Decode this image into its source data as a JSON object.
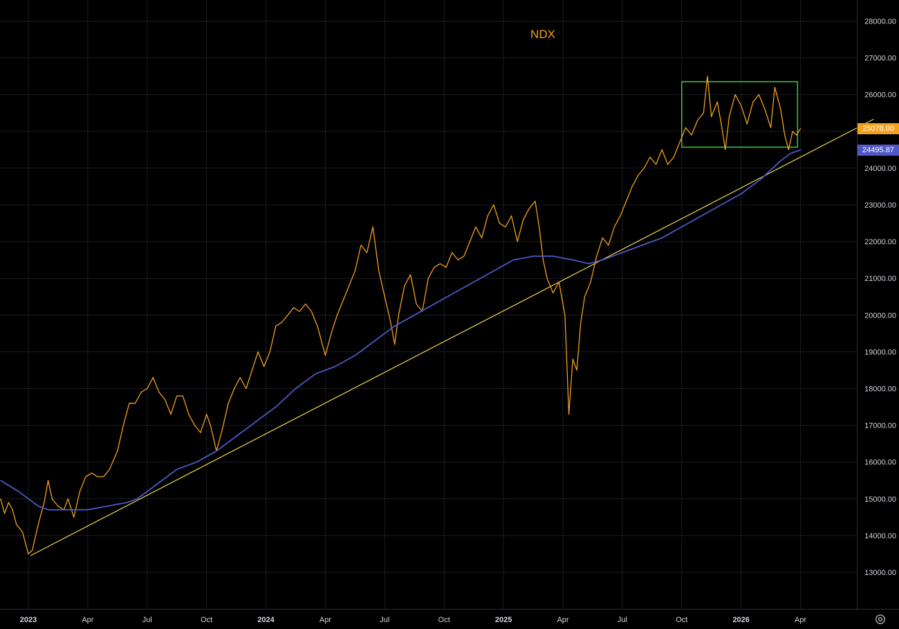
{
  "chart_data": {
    "type": "line",
    "title": "NDX",
    "xlabel": "",
    "ylabel": "",
    "ylim": [
      12000,
      28500
    ],
    "grid": true,
    "y_ticks": [
      "28000.00",
      "27000.00",
      "26000.00",
      "25000.00",
      "24000.00",
      "23000.00",
      "22000.00",
      "21000.00",
      "20000.00",
      "19000.00",
      "18000.00",
      "17000.00",
      "16000.00",
      "15000.00",
      "14000.00",
      "13000.00"
    ],
    "x_ticks": [
      {
        "label": "2023",
        "bold": true,
        "t": 0
      },
      {
        "label": "Apr",
        "bold": false,
        "t": 3
      },
      {
        "label": "Jul",
        "bold": false,
        "t": 6
      },
      {
        "label": "Oct",
        "bold": false,
        "t": 9
      },
      {
        "label": "2024",
        "bold": true,
        "t": 12
      },
      {
        "label": "Apr",
        "bold": false,
        "t": 15
      },
      {
        "label": "Jul",
        "bold": false,
        "t": 18
      },
      {
        "label": "Oct",
        "bold": false,
        "t": 21
      },
      {
        "label": "2025",
        "bold": true,
        "t": 24
      },
      {
        "label": "Apr",
        "bold": false,
        "t": 27
      },
      {
        "label": "Jul",
        "bold": false,
        "t": 30
      },
      {
        "label": "Oct",
        "bold": false,
        "t": 33
      },
      {
        "label": "2026",
        "bold": true,
        "t": 36
      },
      {
        "label": "Apr",
        "bold": false,
        "t": 39
      }
    ],
    "series": [
      {
        "name": "",
        "color": "#f5a11c",
        "points": [
          [
            -1.4,
            15000
          ],
          [
            -1.2,
            14600
          ],
          [
            -1.0,
            14900
          ],
          [
            -0.8,
            14700
          ],
          [
            -0.6,
            14300
          ],
          [
            -0.3,
            14100
          ],
          [
            0.0,
            13500
          ],
          [
            0.2,
            13600
          ],
          [
            0.5,
            14300
          ],
          [
            0.8,
            14900
          ],
          [
            1.0,
            15500
          ],
          [
            1.2,
            15000
          ],
          [
            1.5,
            14800
          ],
          [
            1.8,
            14700
          ],
          [
            2.0,
            15000
          ],
          [
            2.3,
            14500
          ],
          [
            2.6,
            15200
          ],
          [
            2.9,
            15600
          ],
          [
            3.2,
            15700
          ],
          [
            3.5,
            15600
          ],
          [
            3.8,
            15600
          ],
          [
            4.1,
            15800
          ],
          [
            4.5,
            16300
          ],
          [
            4.8,
            17000
          ],
          [
            5.1,
            17600
          ],
          [
            5.4,
            17600
          ],
          [
            5.7,
            17900
          ],
          [
            6.0,
            18000
          ],
          [
            6.3,
            18300
          ],
          [
            6.6,
            17900
          ],
          [
            6.9,
            17700
          ],
          [
            7.2,
            17300
          ],
          [
            7.5,
            17800
          ],
          [
            7.8,
            17800
          ],
          [
            8.1,
            17300
          ],
          [
            8.4,
            17000
          ],
          [
            8.7,
            16800
          ],
          [
            9.0,
            17300
          ],
          [
            9.2,
            17000
          ],
          [
            9.5,
            16300
          ],
          [
            9.8,
            16900
          ],
          [
            10.1,
            17600
          ],
          [
            10.4,
            18000
          ],
          [
            10.7,
            18300
          ],
          [
            11.0,
            18000
          ],
          [
            11.3,
            18500
          ],
          [
            11.6,
            19000
          ],
          [
            11.9,
            18600
          ],
          [
            12.2,
            19000
          ],
          [
            12.5,
            19700
          ],
          [
            12.8,
            19800
          ],
          [
            13.1,
            20000
          ],
          [
            13.4,
            20200
          ],
          [
            13.7,
            20100
          ],
          [
            14.0,
            20300
          ],
          [
            14.3,
            20100
          ],
          [
            14.6,
            19700
          ],
          [
            15.0,
            18900
          ],
          [
            15.3,
            19500
          ],
          [
            15.6,
            20000
          ],
          [
            15.9,
            20400
          ],
          [
            16.2,
            20800
          ],
          [
            16.5,
            21200
          ],
          [
            16.8,
            21900
          ],
          [
            17.1,
            21700
          ],
          [
            17.4,
            22400
          ],
          [
            17.7,
            21200
          ],
          [
            18.0,
            20500
          ],
          [
            18.3,
            19800
          ],
          [
            18.5,
            19200
          ],
          [
            18.7,
            20000
          ],
          [
            19.0,
            20800
          ],
          [
            19.3,
            21100
          ],
          [
            19.6,
            20300
          ],
          [
            19.9,
            20100
          ],
          [
            20.2,
            21000
          ],
          [
            20.5,
            21300
          ],
          [
            20.8,
            21400
          ],
          [
            21.1,
            21300
          ],
          [
            21.4,
            21700
          ],
          [
            21.7,
            21500
          ],
          [
            22.0,
            21600
          ],
          [
            22.3,
            22000
          ],
          [
            22.6,
            22400
          ],
          [
            22.9,
            22100
          ],
          [
            23.2,
            22700
          ],
          [
            23.5,
            23000
          ],
          [
            23.8,
            22500
          ],
          [
            24.1,
            22400
          ],
          [
            24.4,
            22700
          ],
          [
            24.7,
            22000
          ],
          [
            25.0,
            22600
          ],
          [
            25.3,
            22900
          ],
          [
            25.6,
            23100
          ],
          [
            25.8,
            22400
          ],
          [
            26.0,
            21500
          ],
          [
            26.2,
            21000
          ],
          [
            26.5,
            20600
          ],
          [
            26.8,
            20900
          ],
          [
            27.1,
            20000
          ],
          [
            27.3,
            17300
          ],
          [
            27.5,
            18800
          ],
          [
            27.7,
            18500
          ],
          [
            27.9,
            19800
          ],
          [
            28.1,
            20500
          ],
          [
            28.4,
            20900
          ],
          [
            28.7,
            21600
          ],
          [
            29.0,
            22100
          ],
          [
            29.3,
            21900
          ],
          [
            29.6,
            22400
          ],
          [
            29.9,
            22700
          ],
          [
            30.2,
            23100
          ],
          [
            30.5,
            23500
          ],
          [
            30.8,
            23800
          ],
          [
            31.1,
            24000
          ],
          [
            31.4,
            24300
          ],
          [
            31.7,
            24100
          ],
          [
            32.0,
            24500
          ],
          [
            32.3,
            24100
          ],
          [
            32.6,
            24300
          ],
          [
            32.9,
            24700
          ],
          [
            33.2,
            25100
          ],
          [
            33.5,
            24900
          ],
          [
            33.8,
            25300
          ],
          [
            34.1,
            25500
          ],
          [
            34.3,
            26500
          ],
          [
            34.5,
            25400
          ],
          [
            34.8,
            25800
          ],
          [
            35.0,
            25200
          ],
          [
            35.2,
            24500
          ],
          [
            35.4,
            25400
          ],
          [
            35.7,
            26000
          ],
          [
            36.0,
            25700
          ],
          [
            36.3,
            25200
          ],
          [
            36.6,
            25800
          ],
          [
            36.9,
            26000
          ],
          [
            37.2,
            25600
          ],
          [
            37.5,
            25100
          ],
          [
            37.7,
            26200
          ],
          [
            38.0,
            25600
          ],
          [
            38.2,
            24900
          ],
          [
            38.4,
            24500
          ],
          [
            38.6,
            25000
          ],
          [
            38.8,
            24900
          ],
          [
            39.0,
            25078
          ]
        ]
      },
      {
        "name": "",
        "color": "#4e58c8",
        "points": [
          [
            -1.4,
            15500
          ],
          [
            -0.5,
            15200
          ],
          [
            0.0,
            15000
          ],
          [
            0.5,
            14800
          ],
          [
            1.0,
            14700
          ],
          [
            2.0,
            14700
          ],
          [
            3.0,
            14700
          ],
          [
            4.0,
            14800
          ],
          [
            5.0,
            14900
          ],
          [
            5.5,
            15000
          ],
          [
            6.5,
            15400
          ],
          [
            7.5,
            15800
          ],
          [
            8.5,
            16000
          ],
          [
            9.5,
            16300
          ],
          [
            10.5,
            16700
          ],
          [
            11.5,
            17100
          ],
          [
            12.5,
            17500
          ],
          [
            13.5,
            18000
          ],
          [
            14.5,
            18400
          ],
          [
            15.5,
            18600
          ],
          [
            16.5,
            18900
          ],
          [
            17.5,
            19300
          ],
          [
            18.5,
            19700
          ],
          [
            19.5,
            20000
          ],
          [
            20.5,
            20300
          ],
          [
            21.5,
            20600
          ],
          [
            22.5,
            20900
          ],
          [
            23.5,
            21200
          ],
          [
            24.5,
            21500
          ],
          [
            25.5,
            21600
          ],
          [
            26.5,
            21600
          ],
          [
            27.5,
            21500
          ],
          [
            28.3,
            21400
          ],
          [
            29.0,
            21500
          ],
          [
            30.0,
            21700
          ],
          [
            31.0,
            21900
          ],
          [
            32.0,
            22100
          ],
          [
            33.0,
            22400
          ],
          [
            34.0,
            22700
          ],
          [
            35.0,
            23000
          ],
          [
            36.0,
            23300
          ],
          [
            37.0,
            23700
          ],
          [
            38.0,
            24200
          ],
          [
            38.5,
            24400
          ],
          [
            39.0,
            24495.87
          ]
        ]
      }
    ],
    "last_price": "25078.00",
    "ma_value": "24495.87",
    "annotations": {
      "trendline": {
        "color": "#f2d64b",
        "from": [
          0.1,
          13450
        ],
        "to": [
          42.7,
          25330
        ]
      },
      "range_box": {
        "color": "#3fbe3f",
        "t0": 33.0,
        "t1": 38.85,
        "y0": 24570,
        "y1": 26350
      }
    }
  }
}
